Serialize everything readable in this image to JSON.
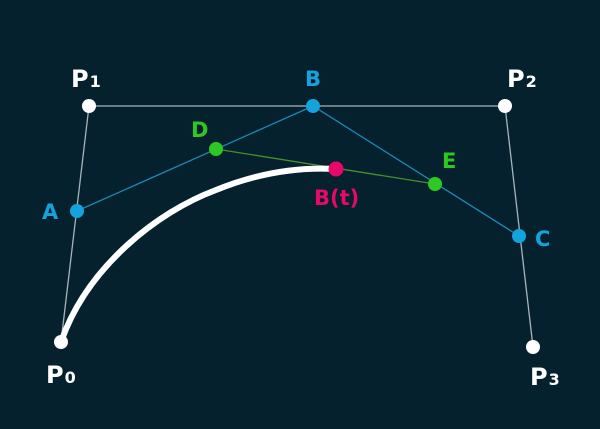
{
  "colors": {
    "background": "#05212d",
    "control_polygon": "#a7b5bb",
    "first_level": "#1e88b3",
    "second_level": "#4a8f2c",
    "white_point": "#ffffff",
    "blue_point": "#14a3dc",
    "green_point": "#2ec824",
    "magenta_point": "#e8086b"
  },
  "labels": {
    "p0": {
      "base": "P",
      "sub": "0"
    },
    "p1": {
      "base": "P",
      "sub": "1"
    },
    "p2": {
      "base": "P",
      "sub": "2"
    },
    "p3": {
      "base": "P",
      "sub": "3"
    },
    "a": "A",
    "b": "B",
    "c": "C",
    "d": "D",
    "e": "E",
    "bt": "B(t)"
  }
}
